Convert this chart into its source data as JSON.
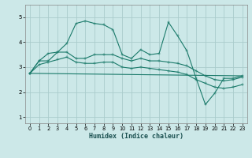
{
  "xlabel": "Humidex (Indice chaleur)",
  "bg_color": "#cce8e8",
  "grid_color": "#aacccc",
  "line_color": "#1a7a6a",
  "xlim": [
    -0.5,
    23.5
  ],
  "ylim": [
    0.75,
    5.5
  ],
  "xticks": [
    0,
    1,
    2,
    3,
    4,
    5,
    6,
    7,
    8,
    9,
    10,
    11,
    12,
    13,
    14,
    15,
    16,
    17,
    18,
    19,
    20,
    21,
    22,
    23
  ],
  "yticks": [
    1,
    2,
    3,
    4,
    5
  ],
  "line1_x": [
    0,
    1,
    2,
    3,
    4,
    5,
    6,
    7,
    8,
    9,
    10,
    11,
    12,
    13,
    14,
    15,
    16,
    17,
    18,
    19,
    20,
    21,
    22,
    23
  ],
  "line1_y": [
    2.75,
    3.25,
    3.25,
    3.6,
    3.95,
    4.75,
    4.85,
    4.75,
    4.7,
    4.5,
    3.5,
    3.35,
    3.7,
    3.5,
    3.55,
    4.8,
    4.25,
    3.65,
    2.55,
    1.5,
    1.95,
    2.55,
    2.55,
    2.65
  ],
  "line2_x": [
    0,
    1,
    2,
    3,
    4,
    5,
    6,
    7,
    8,
    9,
    10,
    11,
    12,
    13,
    14,
    15,
    16,
    17,
    18,
    19,
    20,
    21,
    22,
    23
  ],
  "line2_y": [
    2.75,
    3.25,
    3.55,
    3.6,
    3.6,
    3.35,
    3.35,
    3.5,
    3.5,
    3.5,
    3.35,
    3.25,
    3.35,
    3.25,
    3.25,
    3.2,
    3.15,
    3.05,
    2.85,
    2.65,
    2.5,
    2.45,
    2.5,
    2.6
  ],
  "line3_x": [
    0,
    1,
    2,
    3,
    4,
    5,
    6,
    7,
    8,
    9,
    10,
    11,
    12,
    13,
    14,
    15,
    16,
    17,
    18,
    19,
    20,
    21,
    22,
    23
  ],
  "line3_y": [
    2.75,
    3.1,
    3.2,
    3.3,
    3.4,
    3.2,
    3.15,
    3.15,
    3.2,
    3.2,
    3.0,
    2.95,
    3.0,
    2.95,
    2.9,
    2.85,
    2.8,
    2.7,
    2.5,
    2.35,
    2.2,
    2.15,
    2.2,
    2.3
  ],
  "line4_x": [
    0,
    23
  ],
  "line4_y": [
    2.75,
    2.65
  ]
}
